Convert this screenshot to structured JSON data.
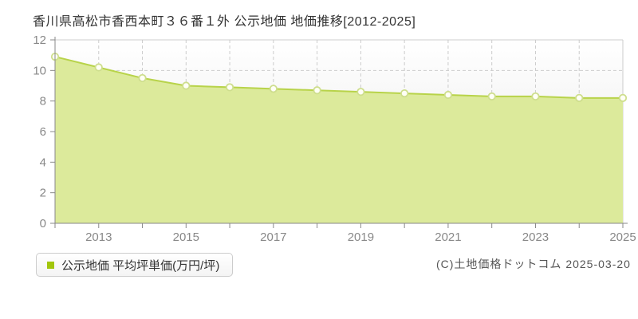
{
  "header": {
    "title": "香川県高松市香西本町３６番１外 公示地価 地価推移[2012-2025]"
  },
  "legend": {
    "label": "公示地価 平均坪単価(万円/坪)"
  },
  "footer": {
    "copyright": "(C)土地価格ドットコム 2025-03-20"
  },
  "chart_data": {
    "type": "area",
    "title": "香川県高松市香西本町３６番１外 公示地価 地価推移[2012-2025]",
    "x": [
      2012,
      2013,
      2014,
      2015,
      2016,
      2017,
      2018,
      2019,
      2020,
      2021,
      2022,
      2023,
      2024,
      2025
    ],
    "series": [
      {
        "name": "公示地価 平均坪単価(万円/坪)",
        "values": [
          10.9,
          10.2,
          9.5,
          9.0,
          8.9,
          8.8,
          8.7,
          8.6,
          8.5,
          8.4,
          8.3,
          8.3,
          8.2,
          8.2
        ]
      }
    ],
    "unit": "万円/坪",
    "xlabel": "",
    "ylabel": "",
    "ylim": [
      0,
      12
    ],
    "y_ticks": [
      0,
      2,
      4,
      6,
      8,
      10,
      12
    ],
    "x_tick_labels": [
      "2013",
      "2015",
      "2017",
      "2019",
      "2021",
      "2023",
      "2025"
    ],
    "grid": true,
    "legend_position": "bottom-left",
    "colors": {
      "area_fill": "#dcea9b",
      "line": "#b8d34a",
      "marker_fill": "#fffff6",
      "marker_stroke": "#cede8d",
      "grid": "#cccccc",
      "plot_border": "#cccccc",
      "axis": "#888888",
      "tick_label": "#888888",
      "plot_bg_top": "#ffffff",
      "plot_bg_bottom": "#e7e7e7",
      "legend_bullet": "#a2c60c"
    }
  }
}
